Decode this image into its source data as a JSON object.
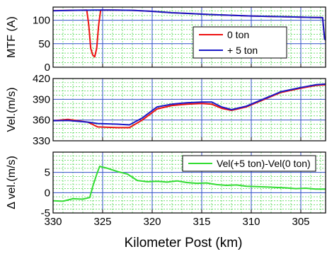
{
  "x_axis": {
    "label": "Kilometer Post (km)",
    "range": [
      330,
      302.5
    ],
    "reversed": true,
    "ticks": [
      330,
      325,
      320,
      315,
      310,
      305
    ]
  },
  "chart_data": [
    {
      "type": "line",
      "id": "mtf",
      "ylabel": "MTF (A)",
      "xlim": [
        330,
        302.5
      ],
      "ylim": [
        0,
        128
      ],
      "yticks": [
        0,
        50,
        100
      ],
      "grid": true,
      "legend_position": "right",
      "series": [
        {
          "name": "0 ton",
          "color": "#ee1111",
          "x": [
            330,
            328,
            326.6,
            326.4,
            326.2,
            326.0,
            325.8,
            325.6,
            325.4,
            325.2,
            324,
            322,
            320,
            318,
            316,
            314,
            312,
            310,
            308,
            306,
            304,
            302.8,
            302.6,
            302.5
          ],
          "y": [
            120.5,
            121,
            121.5,
            90,
            40,
            26,
            22,
            40,
            90,
            121.5,
            121.5,
            121,
            119,
            116,
            114,
            112,
            110.5,
            109,
            108,
            107,
            106,
            105.5,
            60,
            58
          ]
        },
        {
          "name": "+ 5 ton",
          "color": "#1a1ac8",
          "x": [
            330,
            328,
            326,
            324,
            322,
            320,
            318,
            316,
            314,
            312,
            310,
            308,
            306,
            304,
            302.8,
            302.6,
            302.5
          ],
          "y": [
            120,
            121,
            121.5,
            121.5,
            121,
            119,
            116,
            114,
            112,
            110.5,
            109,
            108,
            107,
            106,
            105.5,
            60,
            58
          ]
        }
      ]
    },
    {
      "type": "line",
      "id": "velocity",
      "ylabel": "Vel.(m/s)",
      "xlim": [
        330,
        302.5
      ],
      "ylim": [
        330,
        420
      ],
      "yticks": [
        330,
        360,
        390,
        420
      ],
      "grid": true,
      "series": [
        {
          "name": "0 ton",
          "color": "#ee1111",
          "x": [
            330,
            328.5,
            326.5,
            325.5,
            323.5,
            322.3,
            321,
            319.5,
            318,
            316.5,
            315,
            314,
            313,
            312,
            310.5,
            309,
            307,
            305,
            303.5,
            302.5
          ],
          "y": [
            359,
            361,
            357,
            350,
            349,
            349,
            360,
            376,
            381,
            383,
            384,
            383,
            377,
            374,
            379,
            388,
            400,
            406,
            410,
            411
          ]
        },
        {
          "name": "+ 5 ton",
          "color": "#1a1ac8",
          "x": [
            330,
            328.5,
            326.5,
            325.5,
            323.5,
            322.3,
            321,
            319.5,
            318,
            316.5,
            315,
            314,
            313,
            312,
            310.5,
            309,
            307,
            305,
            303.5,
            302.5
          ],
          "y": [
            359,
            359.5,
            357,
            355,
            354,
            353,
            363,
            379,
            383,
            385,
            386,
            386,
            379,
            375,
            380,
            389,
            401,
            407,
            411,
            412
          ]
        }
      ]
    },
    {
      "type": "line",
      "id": "delta-velocity",
      "ylabel": "Δ vel.(m/s)",
      "xlim": [
        330,
        302.5
      ],
      "ylim": [
        -5,
        10
      ],
      "yticks": [
        -5,
        0,
        5
      ],
      "grid": true,
      "legend_position": "top-right",
      "series": [
        {
          "name": "Vel(+5 ton)-Vel(0 ton)",
          "color": "#33dd33",
          "x": [
            330,
            329,
            328,
            327,
            326.3,
            326,
            325.6,
            325.3,
            324.5,
            323.5,
            322.5,
            321.5,
            320.5,
            319.5,
            318.5,
            317.5,
            316.5,
            315.5,
            314.5,
            313.5,
            312.5,
            311.5,
            310.5,
            309.5,
            308.5,
            307.5,
            306.5,
            305.5,
            304.5,
            303.5,
            302.5
          ],
          "y": [
            -2,
            -2.1,
            -1.5,
            -1.6,
            -1.2,
            1.5,
            4.5,
            6.5,
            6,
            5.2,
            4.6,
            3,
            2.7,
            2.8,
            2.6,
            2.9,
            2.5,
            2.3,
            2.4,
            2.0,
            1.8,
            1.9,
            1.6,
            1.5,
            1.4,
            1.3,
            1.2,
            1.0,
            1.1,
            0.9,
            0.9
          ]
        }
      ]
    }
  ]
}
